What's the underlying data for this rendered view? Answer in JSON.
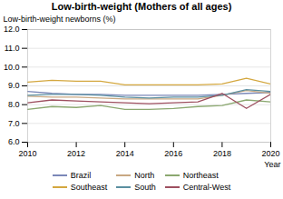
{
  "chart_data": {
    "type": "line",
    "title": "Low-birth-weight (Mothers of all ages)",
    "xlabel": "Year",
    "ylabel": "Low-birth-weight newborns (%)",
    "x": [
      2010,
      2011,
      2012,
      2013,
      2014,
      2015,
      2016,
      2017,
      2018,
      2019,
      2020
    ],
    "series": [
      {
        "name": "Brazil",
        "color": "#7b88b8",
        "values": [
          8.7,
          8.6,
          8.55,
          8.55,
          8.5,
          8.5,
          8.5,
          8.5,
          8.55,
          8.6,
          8.65
        ]
      },
      {
        "name": "North",
        "color": "#c8a882",
        "values": [
          8.45,
          8.4,
          8.4,
          8.35,
          8.3,
          8.3,
          8.3,
          8.3,
          8.5,
          8.75,
          8.6
        ]
      },
      {
        "name": "Northeast",
        "color": "#8ba870",
        "values": [
          7.75,
          7.9,
          7.85,
          7.95,
          7.75,
          7.75,
          7.8,
          7.9,
          7.95,
          8.25,
          8.15
        ]
      },
      {
        "name": "Southeast",
        "color": "#d4a840",
        "values": [
          9.2,
          9.3,
          9.25,
          9.25,
          9.05,
          9.05,
          9.05,
          9.05,
          9.1,
          9.4,
          9.1
        ]
      },
      {
        "name": "South",
        "color": "#5b8fa0",
        "values": [
          8.5,
          8.55,
          8.55,
          8.5,
          8.4,
          8.35,
          8.4,
          8.4,
          8.5,
          8.8,
          8.7
        ]
      },
      {
        "name": "Central-West",
        "color": "#9e5060",
        "values": [
          8.1,
          8.25,
          8.2,
          8.15,
          8.1,
          8.05,
          8.1,
          8.15,
          8.6,
          7.8,
          8.55
        ]
      }
    ],
    "xlim": [
      2010,
      2020
    ],
    "ylim": [
      6,
      12
    ],
    "xticks": [
      2010,
      2012,
      2014,
      2016,
      2018,
      2020
    ],
    "yticks": [
      6,
      7,
      8,
      9,
      10,
      11,
      12
    ],
    "grid": "y",
    "legend": "bottom"
  }
}
